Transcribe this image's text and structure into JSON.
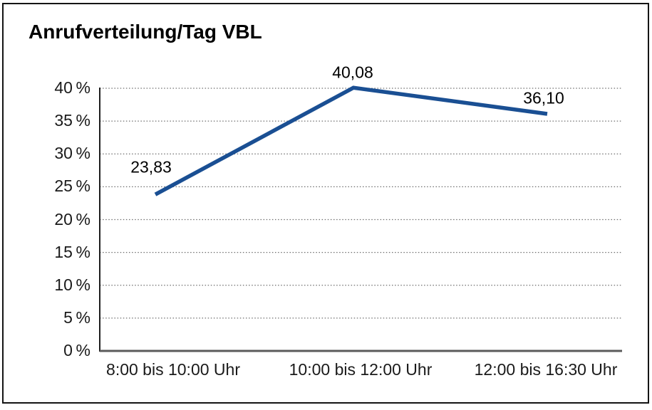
{
  "window": {
    "background": "#ffffff",
    "border_color": "#141414"
  },
  "chart_data": {
    "type": "line",
    "title": "Anrufverteilung/Tag VBL",
    "categories": [
      "8:00 bis 10:00 Uhr",
      "10:00 bis 12:00 Uhr",
      "12:00 bis 16:30 Uhr"
    ],
    "values": [
      23.83,
      40.08,
      36.1
    ],
    "value_labels": [
      "23,83",
      "40,08",
      "36,10"
    ],
    "y_tick_values": [
      0,
      5,
      10,
      15,
      20,
      25,
      30,
      35,
      40
    ],
    "y_tick_labels": [
      "0 %",
      "5 %",
      "10 %",
      "15 %",
      "20 %",
      "25 %",
      "30 %",
      "35 %",
      "40 %"
    ],
    "ylim": [
      0,
      40
    ],
    "xlabel": "",
    "ylabel": "",
    "legend": "none",
    "grid": "horizontal-dotted",
    "line_color": "#1A4F93",
    "grid_color": "#6e6e6e",
    "y_axis_color": "#1f1f1f",
    "x_axis_color": "#5a5a5a",
    "label_color": "#000000"
  }
}
